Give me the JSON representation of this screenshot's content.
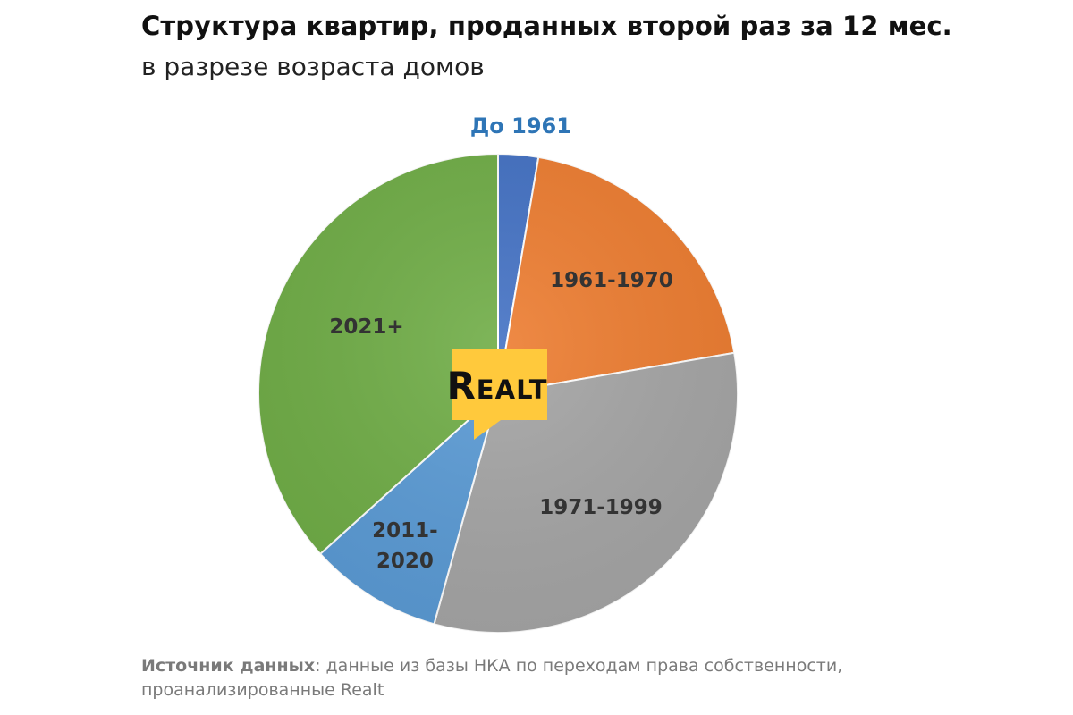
{
  "title": "Структура квартир, проданных второй раз за 12 мес.",
  "subtitle": "в разрезе возраста домов",
  "logo_text": "Realt",
  "source": {
    "label": "Источник данных",
    "text_line1": ": данные из базы НКА по переходам права собственности,",
    "text_line2": "проанализированные Realt"
  },
  "chart_data": {
    "type": "pie",
    "title": "Структура квартир, проданных второй раз за 12 мес.",
    "subtitle": "в разрезе возраста домов",
    "categories": [
      "До 1961",
      "1961-1970",
      "1971-1999",
      "2011-2020",
      "2021+"
    ],
    "values": [
      2.7,
      19.6,
      32.0,
      9.0,
      36.7
    ],
    "value_unit": "%",
    "values_estimated": true,
    "colors": [
      "#4472C4",
      "#ED7D31",
      "#A5A5A5",
      "#5B9BD5",
      "#70AD47"
    ],
    "label_colors": [
      "#2E75B6",
      "#333333",
      "#333333",
      "#333333",
      "#333333"
    ],
    "legend": "none"
  }
}
